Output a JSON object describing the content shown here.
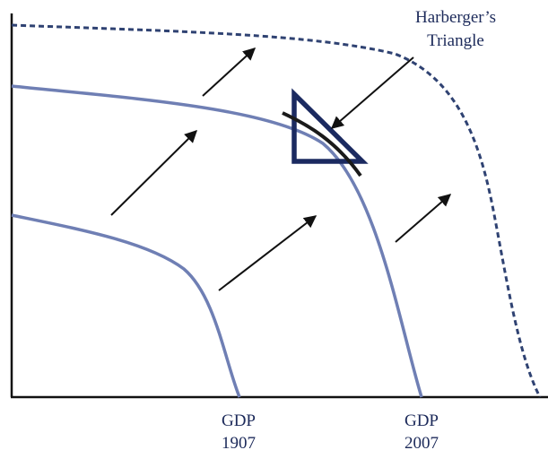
{
  "annotation": {
    "line1": "Harberger’s",
    "line2": "Triangle"
  },
  "x_labels": [
    {
      "line1": "GDP",
      "line2": "1907"
    },
    {
      "line1": "GDP",
      "line2": "2007"
    }
  ],
  "curves": [
    {
      "id": "ppf-1907",
      "style": "solid"
    },
    {
      "id": "ppf-2007",
      "style": "solid"
    },
    {
      "id": "ppf-potential",
      "style": "dashed"
    }
  ],
  "colors": {
    "axis": "#111111",
    "curve": "#6f7fb4",
    "dashed_curve": "#2f4272",
    "triangle": "#1b2a60",
    "tangent": "#1a1a1a",
    "arrow": "#111111",
    "text": "#1c2a5a"
  }
}
